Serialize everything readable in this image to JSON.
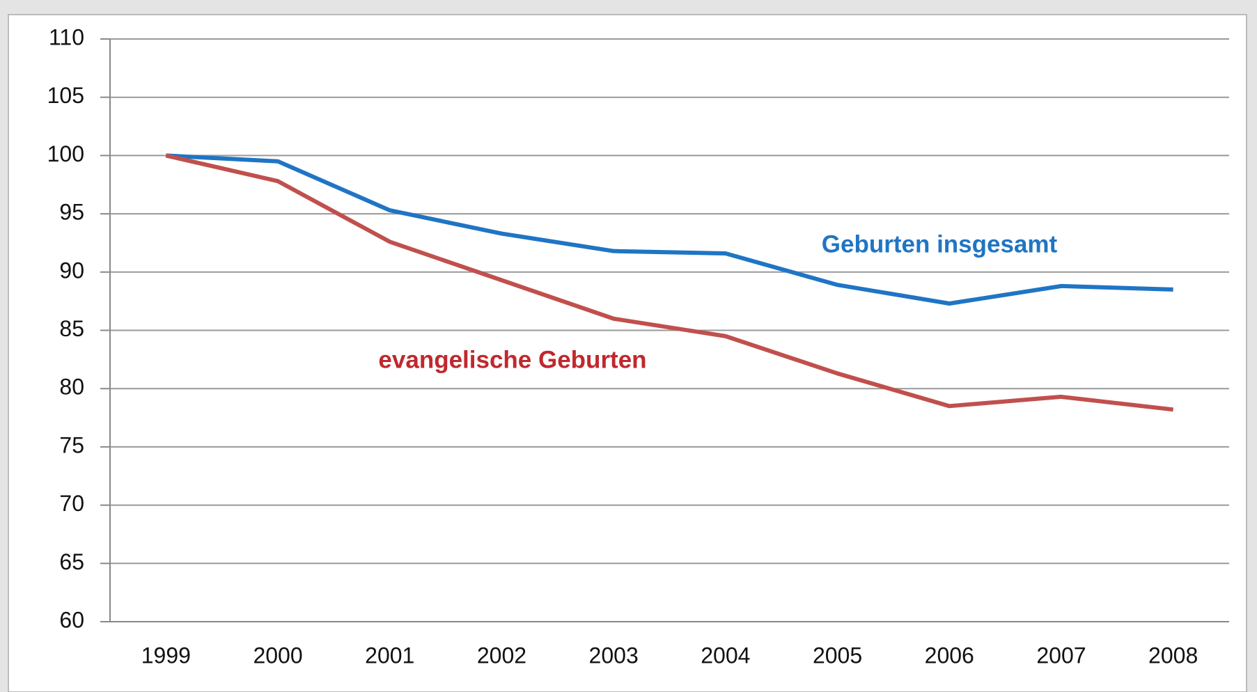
{
  "chart_data": {
    "type": "line",
    "categories": [
      "1999",
      "2000",
      "2001",
      "2002",
      "2003",
      "2004",
      "2005",
      "2006",
      "2007",
      "2008"
    ],
    "series": [
      {
        "name": "Geburten insgesamt",
        "color": "#1f75c4",
        "label_color": "#1f75c4",
        "values": [
          100,
          99.5,
          95.3,
          93.3,
          91.8,
          91.6,
          88.9,
          87.3,
          88.8,
          88.5
        ]
      },
      {
        "name": "evangelische Geburten",
        "color": "#c0504d",
        "label_color": "#c0282d",
        "values": [
          100,
          97.8,
          92.6,
          89.3,
          86.0,
          84.5,
          81.3,
          78.5,
          79.3,
          78.2
        ]
      }
    ],
    "ylim": [
      60,
      110
    ],
    "yticks": [
      60,
      65,
      70,
      75,
      80,
      85,
      90,
      95,
      100,
      105,
      110
    ],
    "grid": true
  }
}
